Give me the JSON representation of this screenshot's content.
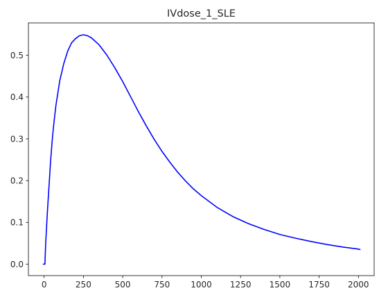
{
  "chart_data": {
    "type": "line",
    "title": "IVdose_1_SLE",
    "xlabel": "",
    "ylabel": "",
    "xlim": [
      -100,
      2100
    ],
    "ylim": [
      -0.0275,
      0.5775
    ],
    "xticks": [
      0,
      250,
      500,
      750,
      1000,
      1250,
      1500,
      1750,
      2000
    ],
    "yticks": [
      0.0,
      0.1,
      0.2,
      0.3,
      0.4,
      0.5
    ],
    "xtick_labels": [
      "0",
      "250",
      "500",
      "750",
      "1000",
      "1250",
      "1500",
      "1750",
      "2000"
    ],
    "ytick_labels": [
      "0.0",
      "0.1",
      "0.2",
      "0.3",
      "0.4",
      "0.5"
    ],
    "grid": false,
    "legend": "none",
    "series": [
      {
        "color": "#0000ff",
        "x": [
          -5,
          0,
          5,
          10,
          20,
          30,
          40,
          50,
          60,
          75,
          100,
          125,
          150,
          175,
          200,
          225,
          250,
          275,
          300,
          350,
          400,
          450,
          500,
          550,
          600,
          650,
          700,
          750,
          800,
          850,
          900,
          950,
          1000,
          1100,
          1200,
          1300,
          1400,
          1500,
          1600,
          1700,
          1800,
          1900,
          2000,
          2010
        ],
        "y": [
          0.0,
          0.0,
          0.0,
          0.05,
          0.12,
          0.18,
          0.24,
          0.29,
          0.33,
          0.38,
          0.44,
          0.48,
          0.51,
          0.53,
          0.54,
          0.547,
          0.549,
          0.547,
          0.542,
          0.525,
          0.5,
          0.47,
          0.437,
          0.401,
          0.365,
          0.331,
          0.299,
          0.27,
          0.244,
          0.22,
          0.199,
          0.18,
          0.164,
          0.136,
          0.114,
          0.097,
          0.083,
          0.071,
          0.062,
          0.054,
          0.047,
          0.041,
          0.036,
          0.035
        ]
      }
    ]
  }
}
